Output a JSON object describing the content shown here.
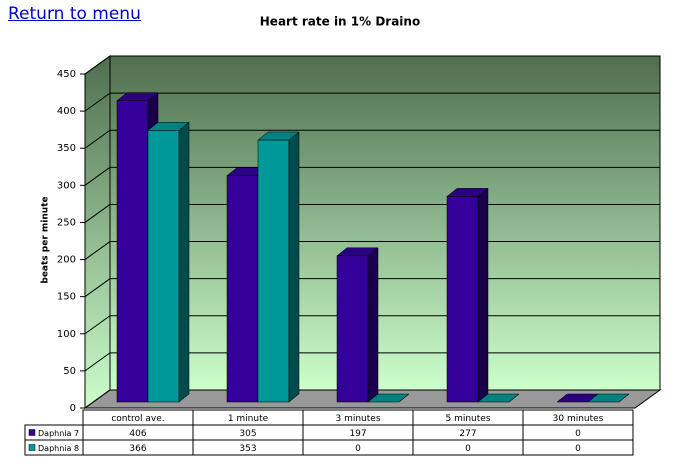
{
  "link": "Return to menu",
  "chart_data": {
    "type": "bar3d",
    "title": "Heart rate in 1% Draino",
    "y_label": "beats per minute",
    "categories": [
      "control ave.",
      "1 minute",
      "3 minutes",
      "5 minutes",
      "30 minutes"
    ],
    "series": [
      {
        "name": "Daphnia 7",
        "color": "#330099",
        "values": [
          406,
          305,
          197,
          277,
          0
        ]
      },
      {
        "name": "Daphnia 8",
        "color": "#009999",
        "values": [
          366,
          353,
          0,
          0,
          0
        ]
      }
    ],
    "ylim": [
      0,
      450
    ],
    "yticks": [
      0,
      50,
      100,
      150,
      200,
      250,
      300,
      350,
      400,
      450
    ],
    "grid": true
  }
}
